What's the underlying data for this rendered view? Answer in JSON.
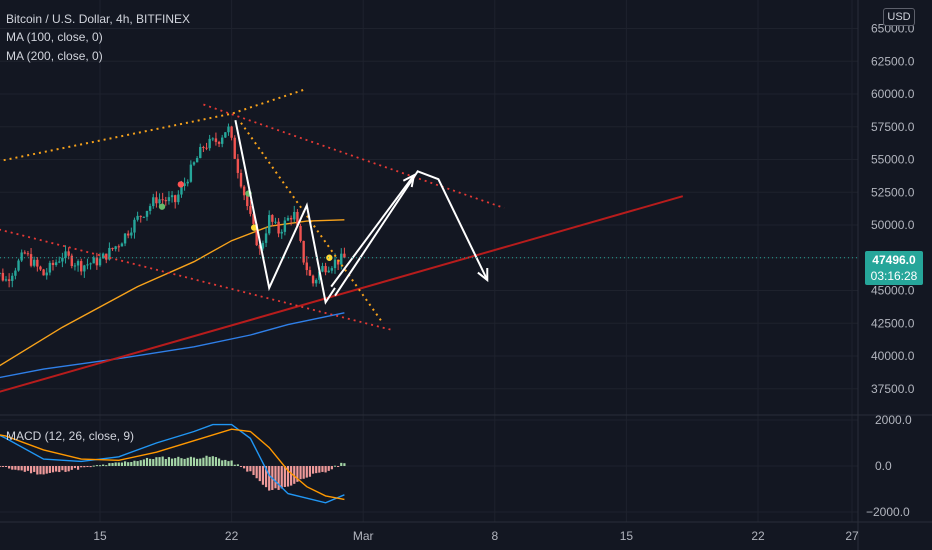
{
  "legend": {
    "title": "Bitcoin / U.S. Dollar, 4h, BITFINEX",
    "ma100": "MA (100, close, 0)",
    "ma200": "MA (200, close, 0)",
    "macd": "MACD (12, 26, close, 9)"
  },
  "currency_button": "USD",
  "last_price": {
    "value": "47496.0",
    "countdown": "03:16:28"
  },
  "colors": {
    "background": "#131722",
    "up": "#26a69a",
    "down": "#ef5350",
    "ma100": "#f7a21b",
    "ma200": "#2f7fe8",
    "trend_red": "#b71c1c",
    "macd_line": "#2196f3",
    "signal_line": "#ff9800",
    "drawing_white": "#ffffff"
  },
  "chart_data": [
    {
      "type": "candlestick",
      "title": "Bitcoin / U.S. Dollar, 4h, BITFINEX",
      "price_axis_labels": [
        "65000.0",
        "62500.0",
        "60000.0",
        "57500.0",
        "55000.0",
        "52500.0",
        "50000.0",
        "47500.0",
        "45000.0",
        "42500.0",
        "40000.0",
        "37500.0"
      ],
      "time_axis_labels": [
        "15",
        "22",
        "Mar",
        "8",
        "15",
        "22",
        "27"
      ],
      "ylim": [
        36000,
        65500
      ],
      "timeline_days": [
        8,
        44
      ],
      "last_price": 47496.0,
      "close_anchors": [
        [
          9.0,
          47000
        ],
        [
          10.0,
          45800
        ],
        [
          11.0,
          47800
        ],
        [
          12.0,
          46200
        ],
        [
          13.0,
          47700
        ],
        [
          14.0,
          46900
        ],
        [
          15.0,
          47300
        ],
        [
          16.0,
          48600
        ],
        [
          17.0,
          50500
        ],
        [
          18.0,
          52000
        ],
        [
          19.0,
          51800
        ],
        [
          19.7,
          53800
        ],
        [
          20.5,
          56000
        ],
        [
          21.3,
          56500
        ],
        [
          21.8,
          57500
        ],
        [
          22.3,
          54500
        ],
        [
          23.0,
          50500
        ],
        [
          23.5,
          48000
        ],
        [
          24.0,
          50500
        ],
        [
          24.5,
          49500
        ],
        [
          25.3,
          51000
        ],
        [
          25.8,
          47500
        ],
        [
          26.3,
          45500
        ],
        [
          26.8,
          46700
        ],
        [
          27.5,
          47200
        ],
        [
          28.1,
          47500
        ]
      ],
      "series": [
        {
          "name": "MA (100, close, 0)",
          "points": [
            [
              8.0,
              37800
            ],
            [
              13.0,
              42200
            ],
            [
              17.0,
              45300
            ],
            [
              20.0,
              47200
            ],
            [
              22.0,
              48800
            ],
            [
              24.0,
              49900
            ],
            [
              26.0,
              50300
            ],
            [
              28.0,
              50400
            ]
          ]
        },
        {
          "name": "MA (200, close, 0)",
          "points": [
            [
              8.0,
              37900
            ],
            [
              12.0,
              39000
            ],
            [
              16.0,
              39800
            ],
            [
              20.0,
              40700
            ],
            [
              23.0,
              41600
            ],
            [
              25.0,
              42400
            ],
            [
              28.0,
              43300
            ]
          ]
        }
      ],
      "markers": [
        {
          "color": "red",
          "day": 19.3,
          "price": 53100
        },
        {
          "color": "green",
          "day": 18.3,
          "price": 51400
        },
        {
          "color": "green",
          "day": 22.9,
          "price": 52400
        },
        {
          "color": "yellow",
          "day": 23.2,
          "price": 49800
        },
        {
          "color": "yellow",
          "day": 27.2,
          "price": 47500
        }
      ],
      "drawings": {
        "white_zigzag": [
          [
            22.2,
            58000
          ],
          [
            24.0,
            45200
          ],
          [
            26.0,
            51500
          ],
          [
            27.0,
            44100
          ],
          [
            27.5,
            45200
          ]
        ],
        "white_channel": [
          [
            27.5,
            44600
          ],
          [
            31.9,
            54100
          ],
          [
            33.0,
            53500
          ],
          [
            35.6,
            45800
          ]
        ],
        "white_channel_inner": [
          [
            27.3,
            45300
          ],
          [
            31.7,
            53800
          ]
        ],
        "red_trendline": [
          [
            9.0,
            37000
          ],
          [
            46.0,
            52200
          ]
        ],
        "orange_upper": [
          [
            8.0,
            54400
          ],
          [
            22.0,
            58500
          ],
          [
            26.0,
            60400
          ]
        ],
        "orange_descending": [
          [
            22.5,
            57800
          ],
          [
            30.0,
            42600
          ]
        ],
        "red_dotted_upper": [
          [
            20.5,
            59200
          ],
          [
            36.5,
            51300
          ]
        ],
        "red_dotted_lower": [
          [
            8.7,
            50000
          ],
          [
            30.5,
            42000
          ]
        ]
      }
    },
    {
      "type": "macd",
      "title": "MACD (12, 26, close, 9)",
      "axis_labels": [
        "2000.0",
        "0.0",
        "−2000.0"
      ],
      "ylim": [
        -2200,
        2300
      ],
      "macd_points": [
        [
          8.0,
          2000
        ],
        [
          10.0,
          1200
        ],
        [
          12.0,
          300
        ],
        [
          14.0,
          200
        ],
        [
          16.0,
          400
        ],
        [
          18.0,
          1000
        ],
        [
          20.0,
          1500
        ],
        [
          21.0,
          1800
        ],
        [
          22.0,
          1800
        ],
        [
          23.0,
          1200
        ],
        [
          24.0,
          -400
        ],
        [
          25.0,
          -1200
        ],
        [
          26.0,
          -1400
        ],
        [
          27.0,
          -1600
        ],
        [
          28.0,
          -1250
        ]
      ],
      "signal_points": [
        [
          8.0,
          1600
        ],
        [
          10.0,
          1300
        ],
        [
          12.0,
          700
        ],
        [
          14.0,
          300
        ],
        [
          16.0,
          250
        ],
        [
          18.0,
          600
        ],
        [
          20.0,
          1100
        ],
        [
          22.0,
          1600
        ],
        [
          23.0,
          1500
        ],
        [
          24.0,
          800
        ],
        [
          25.0,
          -200
        ],
        [
          26.0,
          -900
        ],
        [
          27.0,
          -1300
        ],
        [
          28.0,
          -1450
        ]
      ]
    }
  ]
}
